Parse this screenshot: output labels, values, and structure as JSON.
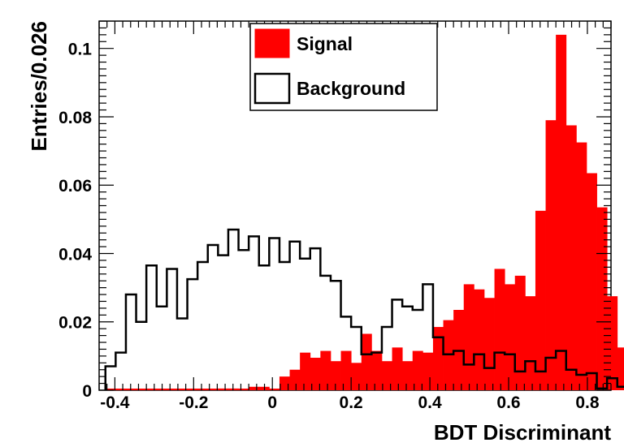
{
  "chart_data": {
    "type": "bar",
    "xlabel": "BDT Discriminant",
    "ylabel": "Entries/0.026",
    "xlim": [
      -0.44,
      0.86
    ],
    "ylim": [
      0,
      0.108
    ],
    "x_ticks": [
      -0.4,
      -0.2,
      0,
      0.2,
      0.4,
      0.6,
      0.8
    ],
    "x_tick_labels": [
      "-0.4",
      "-0.2",
      "0",
      "0.2",
      "0.4",
      "0.6",
      "0.8"
    ],
    "y_ticks": [
      0,
      0.02,
      0.04,
      0.06,
      0.08,
      0.1
    ],
    "y_tick_labels": [
      "0",
      "0.02",
      "0.04",
      "0.06",
      "0.08",
      "0.1"
    ],
    "grid": false,
    "legend_position": "top-center",
    "bin_width": 0.026,
    "bin_start": -0.424,
    "series": [
      {
        "name": "Signal",
        "style": "filled",
        "color": "#ff0000",
        "values": [
          0,
          0,
          0,
          0,
          0,
          0,
          0,
          0,
          0,
          0,
          0,
          0.0005,
          0.0005,
          0,
          0.001,
          0.001,
          0,
          0.004,
          0.006,
          0.011,
          0.0095,
          0.0115,
          0.0085,
          0.0115,
          0.008,
          0.0165,
          0.0115,
          0.0085,
          0.0125,
          0.0085,
          0.0115,
          0.011,
          0.0185,
          0.0205,
          0.0235,
          0.031,
          0.0295,
          0.027,
          0.0355,
          0.031,
          0.0335,
          0.0275,
          0.0525,
          0.079,
          0.104,
          0.0775,
          0.0725,
          0.0635,
          0.0535,
          0.0275,
          0.0125
        ]
      },
      {
        "name": "Background",
        "style": "outline",
        "color": "#000000",
        "values": [
          0.007,
          0.011,
          0.028,
          0.02,
          0.0365,
          0.0245,
          0.0355,
          0.021,
          0.0325,
          0.0375,
          0.0425,
          0.0395,
          0.047,
          0.041,
          0.045,
          0.0365,
          0.0445,
          0.0375,
          0.0435,
          0.0385,
          0.0415,
          0.0335,
          0.032,
          0.0215,
          0.0185,
          0.0105,
          0.011,
          0.0185,
          0.0265,
          0.0245,
          0.0235,
          0.031,
          0.0155,
          0.0105,
          0.0115,
          0.0075,
          0.0105,
          0.0065,
          0.011,
          0.0105,
          0.0055,
          0.0085,
          0.0055,
          0.0095,
          0.0115,
          0.006,
          0.0045,
          0.005,
          0.0005,
          0.0035,
          0.001
        ]
      }
    ]
  }
}
